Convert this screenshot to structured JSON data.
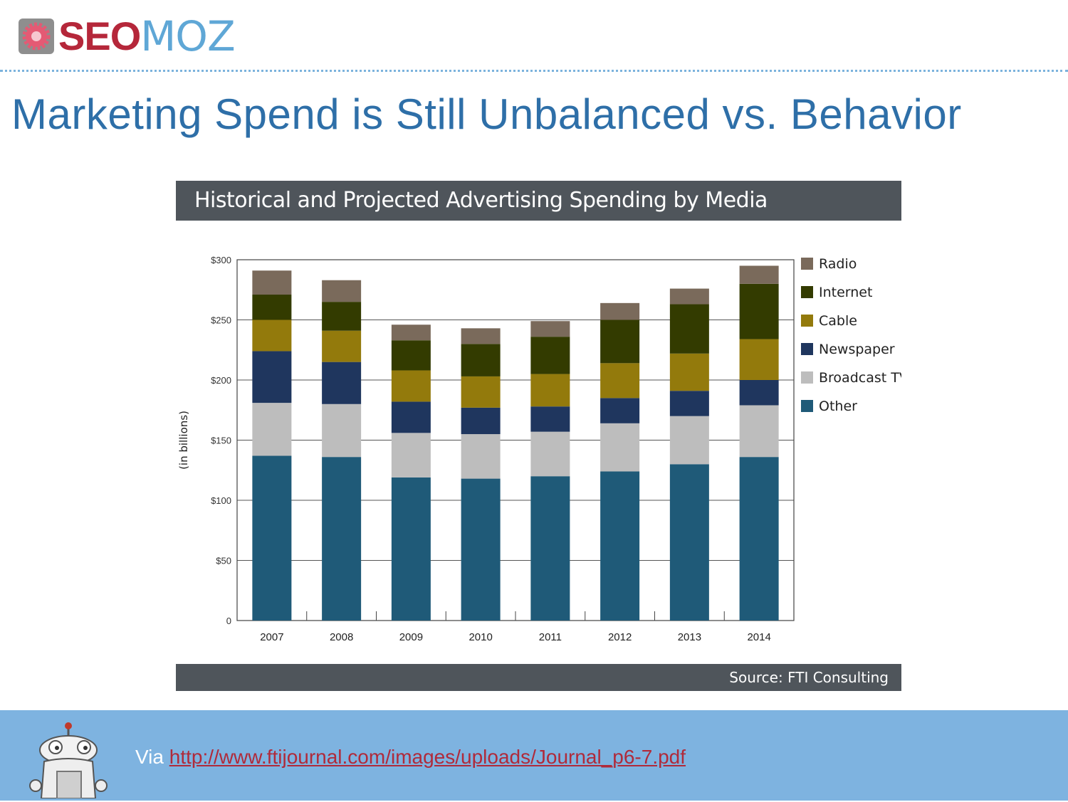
{
  "brand": {
    "logo_seo": "SEO",
    "logo_moz": "MOZ",
    "accent": "#b5273a",
    "secondary": "#5fa7d6"
  },
  "slide": {
    "title": "Marketing Spend is Still Unbalanced vs. Behavior"
  },
  "chart_header": "Historical and Projected Advertising Spending by Media",
  "source": "Source: FTI Consulting",
  "footer": {
    "via_prefix": "Via",
    "link_text": "http://www.ftijournal.com/images/uploads/Journal_p6-7.pdf"
  },
  "chart_data": {
    "type": "bar",
    "stacked": true,
    "categories": [
      "2007",
      "2008",
      "2009",
      "2010",
      "2011",
      "2012",
      "2013",
      "2014"
    ],
    "ylabel": "(in billions)",
    "ylim": [
      0,
      300
    ],
    "yticks": [
      {
        "value": 0,
        "label": "0"
      },
      {
        "value": 50,
        "label": "$50"
      },
      {
        "value": 100,
        "label": "$100"
      },
      {
        "value": 150,
        "label": "$150"
      },
      {
        "value": 200,
        "label": "$200"
      },
      {
        "value": 250,
        "label": "$250"
      },
      {
        "value": 300,
        "label": "$300"
      }
    ],
    "grid": true,
    "legend_position": "right",
    "series": [
      {
        "name": "Other",
        "color": "#1f5a78",
        "values": [
          137,
          136,
          119,
          118,
          120,
          124,
          130,
          136
        ]
      },
      {
        "name": "Broadcast TV",
        "color": "#bdbdbd",
        "values": [
          44,
          44,
          37,
          37,
          37,
          40,
          40,
          43
        ]
      },
      {
        "name": "Newspaper",
        "color": "#1f365e",
        "values": [
          43,
          35,
          26,
          22,
          21,
          21,
          21,
          21
        ]
      },
      {
        "name": "Cable",
        "color": "#937a0c",
        "values": [
          26,
          26,
          26,
          26,
          27,
          29,
          31,
          34
        ]
      },
      {
        "name": "Internet",
        "color": "#333b00",
        "values": [
          21,
          24,
          25,
          27,
          31,
          36,
          41,
          46
        ]
      },
      {
        "name": "Radio",
        "color": "#7a6a5b",
        "values": [
          20,
          18,
          13,
          13,
          13,
          14,
          13,
          15
        ]
      }
    ]
  }
}
